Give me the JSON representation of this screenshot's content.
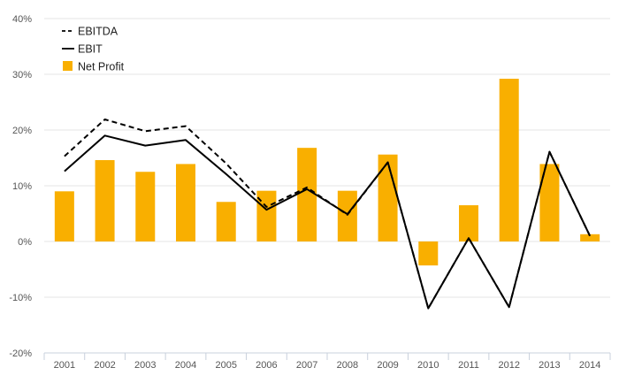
{
  "chart_data": {
    "type": "bar",
    "title": "",
    "xlabel": "",
    "ylabel": "",
    "categories": [
      "2001",
      "2002",
      "2003",
      "2004",
      "2005",
      "2006",
      "2007",
      "2008",
      "2009",
      "2010",
      "2011",
      "2012",
      "2013",
      "2014"
    ],
    "ylim": [
      -20,
      40
    ],
    "y_ticks": [
      "-20%",
      "-10%",
      "0%",
      "10%",
      "20%",
      "30%",
      "40%"
    ],
    "grid": true,
    "legend_position": "top-left",
    "series": [
      {
        "name": "EBITDA",
        "kind": "line",
        "style": "dashed",
        "color": "#000000",
        "values": [
          15.3,
          21.9,
          19.8,
          20.7,
          14.0,
          6.2,
          9.7,
          4.8,
          14.2,
          -12.0,
          0.6,
          -11.8,
          16.1,
          1.0
        ]
      },
      {
        "name": "EBIT",
        "kind": "line",
        "style": "solid",
        "color": "#000000",
        "values": [
          12.6,
          19.0,
          17.2,
          18.2,
          12.1,
          5.7,
          9.4,
          4.9,
          14.2,
          -12.0,
          0.6,
          -11.8,
          16.1,
          1.0
        ]
      },
      {
        "name": "Net Profit",
        "kind": "bar",
        "color": "#F9AF00",
        "values": [
          9.0,
          14.6,
          12.5,
          13.9,
          7.1,
          9.1,
          16.8,
          9.1,
          15.6,
          -4.3,
          6.5,
          29.2,
          13.9,
          1.3
        ]
      }
    ]
  }
}
